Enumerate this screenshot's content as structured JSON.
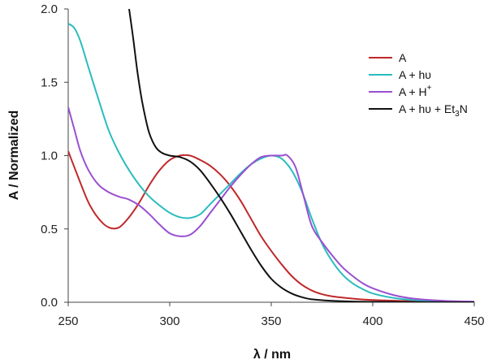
{
  "chart_data": {
    "type": "line",
    "xlabel": "λ / nm",
    "ylabel": "A / Normalized",
    "xlim": [
      250,
      450
    ],
    "ylim": [
      0.0,
      2.0
    ],
    "x_ticks": [
      250,
      300,
      350,
      400,
      450
    ],
    "y_ticks": [
      0.0,
      0.5,
      1.0,
      1.5,
      2.0
    ],
    "x_tick_labels": [
      "250",
      "300",
      "350",
      "400",
      "450"
    ],
    "y_tick_labels": [
      "0.0",
      "0.5",
      "1.0",
      "1.5",
      "2.0"
    ],
    "grid": false,
    "legend_position": "top-right",
    "series": [
      {
        "name": "A",
        "legend": {
          "main": "A",
          "sup": "",
          "sub": "",
          "tail": ""
        },
        "color": "#c0282a",
        "points": [
          [
            250,
            1.03
          ],
          [
            255,
            0.85
          ],
          [
            260,
            0.68
          ],
          [
            265,
            0.57
          ],
          [
            270,
            0.51
          ],
          [
            275,
            0.51
          ],
          [
            280,
            0.58
          ],
          [
            285,
            0.68
          ],
          [
            290,
            0.8
          ],
          [
            295,
            0.9
          ],
          [
            300,
            0.97
          ],
          [
            305,
            1.0
          ],
          [
            310,
            1.0
          ],
          [
            315,
            0.97
          ],
          [
            320,
            0.93
          ],
          [
            325,
            0.87
          ],
          [
            330,
            0.79
          ],
          [
            335,
            0.69
          ],
          [
            340,
            0.57
          ],
          [
            345,
            0.45
          ],
          [
            350,
            0.35
          ],
          [
            355,
            0.26
          ],
          [
            360,
            0.18
          ],
          [
            365,
            0.12
          ],
          [
            370,
            0.08
          ],
          [
            375,
            0.055
          ],
          [
            380,
            0.04
          ],
          [
            390,
            0.025
          ],
          [
            400,
            0.015
          ],
          [
            420,
            0.007
          ],
          [
            450,
            0.0
          ]
        ]
      },
      {
        "name": "A + hυ",
        "legend": {
          "main": "A + hυ",
          "sup": "",
          "sub": "",
          "tail": ""
        },
        "color": "#2bbcc0",
        "points": [
          [
            250,
            1.9
          ],
          [
            253,
            1.87
          ],
          [
            256,
            1.78
          ],
          [
            260,
            1.6
          ],
          [
            265,
            1.38
          ],
          [
            270,
            1.17
          ],
          [
            275,
            1.02
          ],
          [
            280,
            0.9
          ],
          [
            285,
            0.8
          ],
          [
            290,
            0.72
          ],
          [
            295,
            0.66
          ],
          [
            300,
            0.61
          ],
          [
            305,
            0.58
          ],
          [
            310,
            0.575
          ],
          [
            315,
            0.6
          ],
          [
            320,
            0.67
          ],
          [
            325,
            0.74
          ],
          [
            330,
            0.81
          ],
          [
            335,
            0.88
          ],
          [
            340,
            0.94
          ],
          [
            345,
            0.98
          ],
          [
            350,
            1.0
          ],
          [
            355,
            0.98
          ],
          [
            360,
            0.9
          ],
          [
            365,
            0.76
          ],
          [
            370,
            0.57
          ],
          [
            375,
            0.4
          ],
          [
            380,
            0.28
          ],
          [
            385,
            0.19
          ],
          [
            390,
            0.13
          ],
          [
            395,
            0.09
          ],
          [
            400,
            0.06
          ],
          [
            410,
            0.03
          ],
          [
            420,
            0.015
          ],
          [
            435,
            0.006
          ],
          [
            450,
            0.0
          ]
        ]
      },
      {
        "name": "A + H+",
        "legend": {
          "main": "A + H",
          "sup": "+",
          "sub": "",
          "tail": ""
        },
        "color": "#9a4fd0",
        "points": [
          [
            250,
            1.33
          ],
          [
            253,
            1.18
          ],
          [
            256,
            1.03
          ],
          [
            260,
            0.9
          ],
          [
            265,
            0.8
          ],
          [
            270,
            0.75
          ],
          [
            275,
            0.72
          ],
          [
            280,
            0.7
          ],
          [
            285,
            0.66
          ],
          [
            290,
            0.6
          ],
          [
            295,
            0.53
          ],
          [
            300,
            0.47
          ],
          [
            305,
            0.45
          ],
          [
            310,
            0.46
          ],
          [
            315,
            0.52
          ],
          [
            320,
            0.61
          ],
          [
            325,
            0.7
          ],
          [
            330,
            0.79
          ],
          [
            335,
            0.87
          ],
          [
            340,
            0.94
          ],
          [
            345,
            0.99
          ],
          [
            350,
            1.0
          ],
          [
            355,
            1.0
          ],
          [
            358,
            1.0
          ],
          [
            362,
            0.92
          ],
          [
            366,
            0.72
          ],
          [
            370,
            0.52
          ],
          [
            375,
            0.41
          ],
          [
            380,
            0.32
          ],
          [
            385,
            0.24
          ],
          [
            390,
            0.18
          ],
          [
            395,
            0.13
          ],
          [
            400,
            0.095
          ],
          [
            410,
            0.05
          ],
          [
            420,
            0.025
          ],
          [
            435,
            0.01
          ],
          [
            450,
            0.005
          ]
        ]
      },
      {
        "name": "A + hυ + Et3N",
        "legend": {
          "main": "A + hυ + Et",
          "sup": "",
          "sub": "3",
          "tail": "N"
        },
        "color": "#111111",
        "points": [
          [
            280,
            2.0
          ],
          [
            282,
            1.8
          ],
          [
            284,
            1.58
          ],
          [
            286,
            1.4
          ],
          [
            288,
            1.26
          ],
          [
            290,
            1.15
          ],
          [
            293,
            1.06
          ],
          [
            296,
            1.02
          ],
          [
            300,
            1.0
          ],
          [
            305,
            0.99
          ],
          [
            310,
            0.96
          ],
          [
            315,
            0.9
          ],
          [
            320,
            0.81
          ],
          [
            325,
            0.71
          ],
          [
            330,
            0.6
          ],
          [
            335,
            0.48
          ],
          [
            340,
            0.36
          ],
          [
            345,
            0.25
          ],
          [
            350,
            0.16
          ],
          [
            355,
            0.1
          ],
          [
            360,
            0.06
          ],
          [
            365,
            0.035
          ],
          [
            370,
            0.02
          ],
          [
            380,
            0.01
          ],
          [
            400,
            0.003
          ],
          [
            450,
            0.0
          ]
        ]
      }
    ]
  }
}
